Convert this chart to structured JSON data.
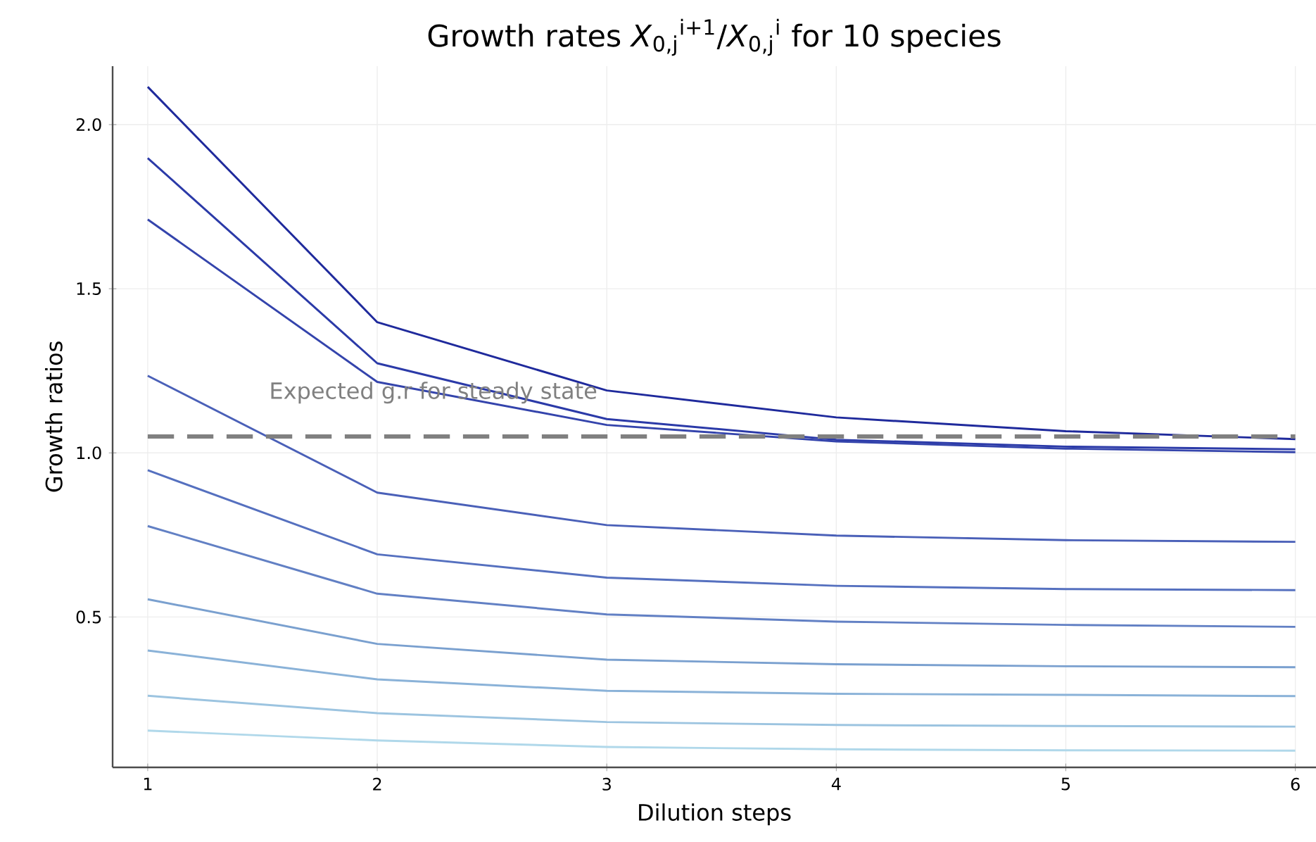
{
  "chart_data": {
    "type": "line",
    "title": "Growth rates *X*$_{0,j}$$^{i+1}$/*X*$_{0,j}$$^{i}$ for 10 species",
    "xlabel": "Dilution steps",
    "ylabel": "Growth ratios",
    "x": [
      1,
      2,
      3,
      4,
      5,
      6
    ],
    "series": [
      {
        "color": "#1f2a9c",
        "values": [
          2.115,
          1.398,
          1.19,
          1.108,
          1.066,
          1.042
        ]
      },
      {
        "color": "#2b3aa8",
        "values": [
          1.898,
          1.273,
          1.103,
          1.04,
          1.019,
          1.011
        ]
      },
      {
        "color": "#3444ac",
        "values": [
          1.711,
          1.216,
          1.085,
          1.035,
          1.013,
          1.002
        ]
      },
      {
        "color": "#4a60b8",
        "values": [
          1.235,
          0.879,
          0.78,
          0.748,
          0.734,
          0.729
        ]
      },
      {
        "color": "#5570bf",
        "values": [
          0.947,
          0.691,
          0.62,
          0.595,
          0.585,
          0.582
        ]
      },
      {
        "color": "#6280c4",
        "values": [
          0.777,
          0.571,
          0.508,
          0.486,
          0.476,
          0.47
        ]
      },
      {
        "color": "#7aa0cf",
        "values": [
          0.554,
          0.418,
          0.37,
          0.356,
          0.35,
          0.347
        ]
      },
      {
        "color": "#8ab2d8",
        "values": [
          0.398,
          0.31,
          0.275,
          0.266,
          0.263,
          0.259
        ]
      },
      {
        "color": "#9cc4e0",
        "values": [
          0.26,
          0.207,
          0.18,
          0.171,
          0.168,
          0.166
        ]
      },
      {
        "color": "#b0d8ea",
        "values": [
          0.154,
          0.124,
          0.104,
          0.097,
          0.094,
          0.093
        ]
      }
    ],
    "xlim": [
      0.847,
      6.09
    ],
    "ylim": [
      0.042,
      2.178
    ],
    "xticks": [
      1,
      2,
      3,
      4,
      5,
      6
    ],
    "yticks": [
      0.5,
      {
        "value": 1,
        "label": "1.0"
      },
      1.5,
      {
        "value": 2,
        "label": "2.0"
      }
    ],
    "ref_lines": [
      {
        "axis": "y",
        "value": 1.05,
        "label": "Expected g.r for steady state",
        "color": "#808080",
        "line_style": "dashed"
      }
    ],
    "grid": true,
    "marker": "none",
    "line_style": "solid"
  }
}
